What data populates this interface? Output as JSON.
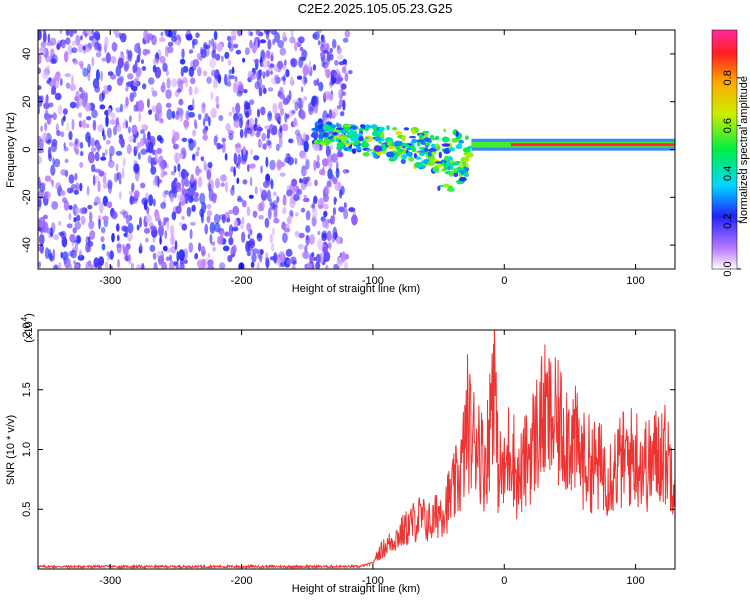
{
  "title": "C2E2.2025.105.05.23.G25",
  "chart_data": [
    {
      "type": "heatmap",
      "name": "spectrogram",
      "xlabel": "Height of straight line (km)",
      "ylabel": "Frequency (Hz)",
      "xlim": [
        -355,
        130
      ],
      "ylim": [
        -50,
        50
      ],
      "xticks": [
        "-300",
        "-200",
        "-100",
        "0",
        "100"
      ],
      "xtick_values": [
        -300,
        -200,
        -100,
        0,
        100
      ],
      "yticks": [
        "-40",
        "-20",
        "0",
        "20",
        "40"
      ],
      "ytick_values": [
        -40,
        -20,
        0,
        20,
        40
      ],
      "colorbar": {
        "label": "Normalized spectral amplitude",
        "range": [
          0,
          1
        ],
        "ticks": [
          "0.0",
          "0.2",
          "0.4",
          "0.6",
          "0.8"
        ],
        "tick_values": [
          0.0,
          0.2,
          0.4,
          0.6,
          0.8
        ]
      },
      "regions": [
        {
          "description": "noise",
          "x_range": [
            -355,
            -120
          ],
          "freq_range": [
            -50,
            50
          ],
          "amplitude": 0.08
        },
        {
          "description": "dispersing signal",
          "x_range": [
            -145,
            -25
          ],
          "freq_range": [
            -20,
            14
          ],
          "amplitude": 0.35
        },
        {
          "description": "steady tone",
          "x_range": [
            -25,
            130
          ],
          "freq_center": 2,
          "amplitude": 0.95
        }
      ]
    },
    {
      "type": "line",
      "name": "snr",
      "xlabel": "Height of straight line (km)",
      "ylabel": "SNR (10 * v/v)",
      "multiplier": "(x10",
      "multiplier_exp": "4",
      "xlim": [
        -355,
        130
      ],
      "ylim": [
        0,
        2.0
      ],
      "xticks": [
        "-300",
        "-200",
        "-100",
        "0",
        "100"
      ],
      "xtick_values": [
        -300,
        -200,
        -100,
        0,
        100
      ],
      "yticks": [
        "0.5",
        "1.0",
        "1.5",
        "2.0"
      ],
      "ytick_values": [
        0.5,
        1.0,
        1.5,
        2.0
      ],
      "series": [
        {
          "name": "SNR",
          "color": "#ee3333",
          "x": [
            -355,
            -300,
            -250,
            -200,
            -150,
            -110,
            -100,
            -95,
            -85,
            -75,
            -65,
            -55,
            -50,
            -45,
            -38,
            -32,
            -28,
            -24,
            -20,
            -16,
            -12,
            -8,
            -5,
            0,
            5,
            10,
            20,
            30,
            40,
            50,
            60,
            70,
            80,
            90,
            100,
            110,
            120,
            130
          ],
          "y": [
            0.02,
            0.02,
            0.02,
            0.02,
            0.02,
            0.02,
            0.05,
            0.15,
            0.25,
            0.35,
            0.45,
            0.4,
            0.5,
            0.55,
            0.7,
            0.9,
            1.3,
            1.1,
            1.2,
            0.9,
            1.1,
            1.9,
            0.9,
            0.8,
            1.15,
            0.75,
            1.05,
            1.35,
            1.25,
            1.2,
            0.95,
            0.9,
            0.85,
            0.95,
            1.0,
            0.9,
            1.05,
            0.85
          ]
        }
      ]
    }
  ]
}
